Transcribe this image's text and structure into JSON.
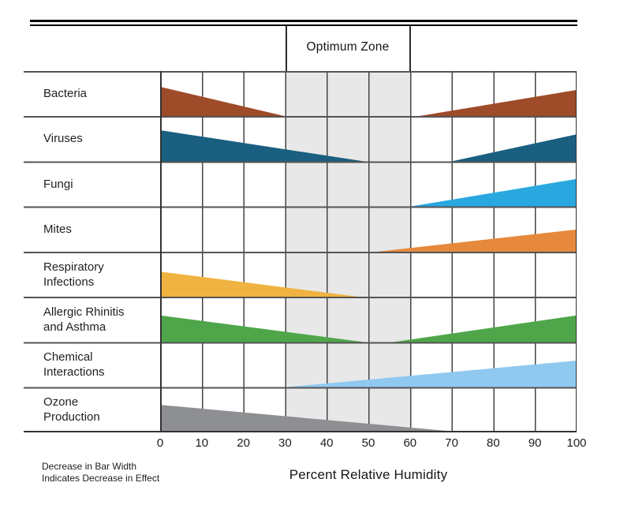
{
  "header": {
    "optimum_zone_label": "Optimum Zone"
  },
  "rows": [
    {
      "id": "bacteria",
      "line1": "Bacteria",
      "line2": ""
    },
    {
      "id": "viruses",
      "line1": "Viruses",
      "line2": ""
    },
    {
      "id": "fungi",
      "line1": "Fungi",
      "line2": ""
    },
    {
      "id": "mites",
      "line1": "Mites",
      "line2": ""
    },
    {
      "id": "respiratory-infections",
      "line1": "Respiratory",
      "line2": "Infections"
    },
    {
      "id": "allergic-rhinitis",
      "line1": "Allergic Rhinitis",
      "line2": "and Asthma"
    },
    {
      "id": "chemical-interactions",
      "line1": "Chemical",
      "line2": "Interactions"
    },
    {
      "id": "ozone-production",
      "line1": "Ozone",
      "line2": "Production"
    }
  ],
  "axis": {
    "title": "Percent Relative Humidity",
    "ticks": [
      "0",
      "10",
      "20",
      "30",
      "40",
      "50",
      "60",
      "70",
      "80",
      "90",
      "100"
    ]
  },
  "note": {
    "line1": "Decrease in Bar Width",
    "line2": "Indicates Decrease in Effect"
  },
  "colors": {
    "optimum_band": "#e8e8e8",
    "grid_line": "#444444",
    "row_line": "#545454",
    "rule": "#0a0a0a"
  },
  "chart_data": {
    "type": "area",
    "title": "Optimum Zone",
    "xlabel": "Percent Relative Humidity",
    "x_range": [
      0,
      100
    ],
    "x_ticks": [
      0,
      10,
      20,
      30,
      40,
      50,
      60,
      70,
      80,
      90,
      100
    ],
    "optimum_zone": {
      "label": "Optimum Zone",
      "x_start": 30,
      "x_end": 60
    },
    "note": "Decrease in Bar Width Indicates Decrease in Effect",
    "series": [
      {
        "name": "Bacteria",
        "color": "#9e4b29",
        "wedges": [
          {
            "x0": 0,
            "x1": 30,
            "h0": 0.65,
            "h1": 0
          },
          {
            "x0": 62,
            "x1": 100,
            "h0": 0,
            "h1": 0.58
          }
        ]
      },
      {
        "name": "Viruses",
        "color": "#1a5f80",
        "wedges": [
          {
            "x0": 0,
            "x1": 49,
            "h0": 0.69,
            "h1": 0
          },
          {
            "x0": 70,
            "x1": 100,
            "h0": 0,
            "h1": 0.6
          }
        ]
      },
      {
        "name": "Fungi",
        "color": "#29a8e0",
        "wedges": [
          {
            "x0": 60,
            "x1": 100,
            "h0": 0,
            "h1": 0.61
          }
        ]
      },
      {
        "name": "Mites",
        "color": "#e6893c",
        "wedges": [
          {
            "x0": 52,
            "x1": 100,
            "h0": 0,
            "h1": 0.49
          }
        ]
      },
      {
        "name": "Respiratory Infections",
        "color": "#f0b342",
        "wedges": [
          {
            "x0": 0,
            "x1": 48,
            "h0": 0.56,
            "h1": 0
          }
        ]
      },
      {
        "name": "Allergic Rhinitis and Asthma",
        "color": "#4fa64a",
        "wedges": [
          {
            "x0": 0,
            "x1": 49,
            "h0": 0.59,
            "h1": 0
          },
          {
            "x0": 56,
            "x1": 100,
            "h0": 0,
            "h1": 0.59
          }
        ]
      },
      {
        "name": "Chemical Interactions",
        "color": "#90c9f0",
        "wedges": [
          {
            "x0": 30,
            "x1": 100,
            "h0": 0,
            "h1": 0.59
          }
        ]
      },
      {
        "name": "Ozone Production",
        "color": "#8e8f92",
        "wedges": [
          {
            "x0": 0,
            "x1": 73,
            "h0": 0.61,
            "h1": 0
          }
        ]
      }
    ]
  }
}
